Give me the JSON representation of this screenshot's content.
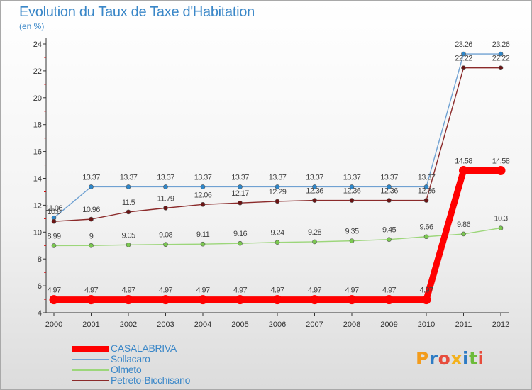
{
  "title": "Evolution du Taux de Taxe d'Habitation",
  "subtitle": "(en %)",
  "logo": {
    "letters": [
      "P",
      "r",
      "o",
      "x",
      "i",
      "t",
      "i"
    ],
    "colors": [
      "#f39c1c",
      "#2d7bc4",
      "#e74c3c",
      "#f3b11c",
      "#2d7bc4",
      "#6dbb3a",
      "#e74c3c"
    ]
  },
  "chart_data": {
    "type": "line",
    "title": "Evolution du Taux de Taxe d'Habitation",
    "ylabel": "(en %)",
    "ylim": [
      4,
      24
    ],
    "yticks": [
      4,
      6,
      8,
      10,
      12,
      14,
      16,
      18,
      20,
      22,
      24
    ],
    "x": [
      "2000",
      "2001",
      "2002",
      "2003",
      "2004",
      "2005",
      "2006",
      "2007",
      "2008",
      "2009",
      "2010",
      "2011",
      "2012"
    ],
    "grid": false,
    "legend_position": "bottom-left",
    "series": [
      {
        "name": "CASALABRIVA",
        "color": "#ff0000",
        "point_color": "#ff0000",
        "bold": true,
        "labels": [
          "4.97",
          "4.97",
          "4.97",
          "4.97",
          "4.97",
          "4.97",
          "4.97",
          "4.97",
          "4.97",
          "4.97",
          "4.97",
          "14.58",
          "14.58"
        ],
        "values": [
          4.97,
          4.97,
          4.97,
          4.97,
          4.97,
          4.97,
          4.97,
          4.97,
          4.97,
          4.97,
          4.97,
          14.58,
          14.58
        ]
      },
      {
        "name": "Sollacaro",
        "color": "#6fa1d2",
        "point_color": "#2e86c9",
        "bold": false,
        "labels": [
          "11.06",
          "13.37",
          "13.37",
          "13.37",
          "13.37",
          "13.37",
          "13.37",
          "13.37",
          "13.37",
          "13.37",
          "13.37",
          "23.26",
          "23.26"
        ],
        "values": [
          11.06,
          13.37,
          13.37,
          13.37,
          13.37,
          13.37,
          13.37,
          13.37,
          13.37,
          13.37,
          13.37,
          23.26,
          23.26
        ]
      },
      {
        "name": "Olmeto",
        "color": "#9cd67a",
        "point_color": "#7bc950",
        "bold": false,
        "labels": [
          "8.99",
          "9",
          "9.05",
          "9.08",
          "9.11",
          "9.16",
          "9.24",
          "9.28",
          "9.35",
          "9.45",
          "9.66",
          "9.86",
          "10.3"
        ],
        "values": [
          8.99,
          9,
          9.05,
          9.08,
          9.11,
          9.16,
          9.24,
          9.28,
          9.35,
          9.45,
          9.66,
          9.86,
          10.3
        ]
      },
      {
        "name": "Petreto-Bicchisano",
        "color": "#8b2a2a",
        "point_color": "#6b1414",
        "bold": false,
        "labels": [
          "10.8",
          "10.96",
          "11.5",
          "11.79",
          "12.06",
          "12.17",
          "12.29",
          "12.36",
          "12.36",
          "12.36",
          "12.36",
          "22.22",
          "22.22"
        ],
        "values": [
          10.8,
          10.96,
          11.5,
          11.79,
          12.06,
          12.17,
          12.29,
          12.36,
          12.36,
          12.36,
          12.36,
          22.22,
          22.22
        ]
      }
    ]
  }
}
